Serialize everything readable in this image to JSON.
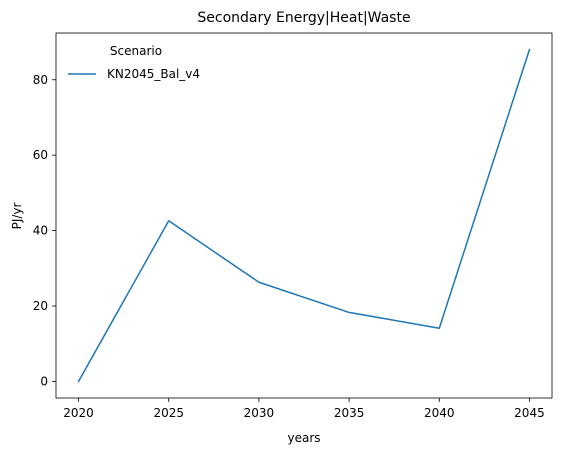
{
  "chart_data": {
    "type": "line",
    "title": "Secondary Energy|Heat|Waste",
    "xlabel": "years",
    "ylabel": "PJ/yr",
    "x": [
      2020,
      2025,
      2030,
      2035,
      2040,
      2045
    ],
    "xlim": [
      2018.75,
      2046.25
    ],
    "ylim": [
      -4.4,
      92.4
    ],
    "xticks": [
      2020,
      2025,
      2030,
      2035,
      2040,
      2045
    ],
    "yticks": [
      0,
      20,
      40,
      60,
      80
    ],
    "grid": false,
    "legend": {
      "title": "Scenario",
      "placement": "top-left"
    },
    "series": [
      {
        "name": "KN2045_Bal_v4",
        "color": "#1f77b4",
        "values": [
          0.0,
          42.6,
          26.3,
          18.3,
          14.1,
          88.0
        ]
      }
    ]
  }
}
